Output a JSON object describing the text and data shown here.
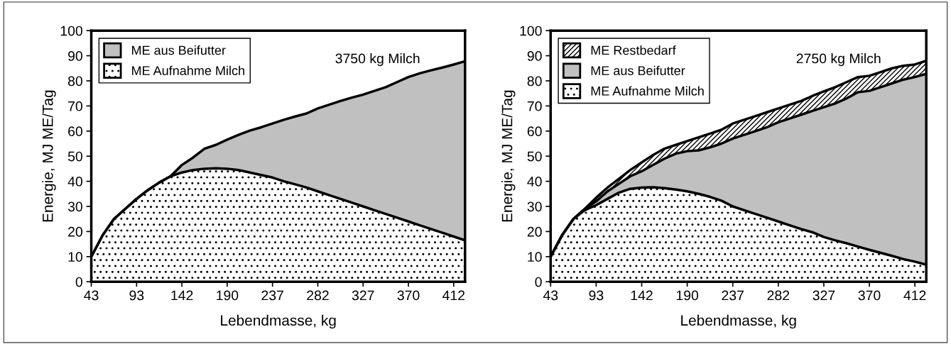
{
  "chart_data": [
    {
      "type": "area",
      "stacked": true,
      "xlabel": "Lebendmasse, kg",
      "ylabel": "Energie, MJ ME/Tag",
      "annotations": [
        "3750 kg Milch"
      ],
      "categories": [
        "43",
        null,
        null,
        null,
        "93",
        null,
        null,
        null,
        "142",
        null,
        null,
        null,
        "190",
        null,
        null,
        null,
        "237",
        null,
        null,
        null,
        "282",
        null,
        null,
        null,
        "327",
        null,
        null,
        null,
        "370",
        null,
        null,
        null,
        "412",
        null
      ],
      "ylim": [
        0,
        100
      ],
      "yticks": [
        0,
        10,
        20,
        30,
        40,
        50,
        60,
        70,
        80,
        90,
        100
      ],
      "grid": false,
      "legend": "top left",
      "series": [
        {
          "name": "ME Aufnahme Milch",
          "color": "#ffffff",
          "values": [
            10,
            18.5,
            25,
            29,
            33,
            36.5,
            39.5,
            42,
            43.5,
            44.5,
            45,
            45.2,
            45,
            44.5,
            43.5,
            42.5,
            41.5,
            40,
            38.8,
            37.5,
            36,
            34.5,
            33,
            31.5,
            30,
            28.5,
            27,
            25.5,
            24,
            22.5,
            21,
            19.5,
            18,
            16.5
          ]
        },
        {
          "name": "ME aus Beifutter",
          "color": "#c0c0c0",
          "values": [
            0,
            0,
            0,
            0,
            0,
            0,
            0,
            0,
            3,
            5,
            8,
            9.3,
            11.6,
            14,
            16.7,
            19,
            21.5,
            24.5,
            27,
            29.5,
            33,
            36,
            39,
            41.8,
            44.5,
            47.5,
            50.5,
            54,
            57.5,
            60.5,
            63.2,
            65.8,
            68.5,
            71.3
          ]
        }
      ]
    },
    {
      "type": "area",
      "stacked": true,
      "xlabel": "Lebendmasse, kg",
      "ylabel": "Energie, MJ ME/Tag",
      "annotations": [
        "2750 kg Milch"
      ],
      "categories": [
        "43",
        null,
        null,
        null,
        "93",
        null,
        null,
        null,
        "142",
        null,
        null,
        null,
        "190",
        null,
        null,
        null,
        "237",
        null,
        null,
        null,
        "282",
        null,
        null,
        null,
        "327",
        null,
        null,
        null,
        "370",
        null,
        null,
        null,
        "412",
        null
      ],
      "ylim": [
        0,
        100
      ],
      "yticks": [
        0,
        10,
        20,
        30,
        40,
        50,
        60,
        70,
        80,
        90,
        100
      ],
      "grid": false,
      "legend": "top left",
      "series": [
        {
          "name": "ME Aufnahme Milch",
          "color": "#ffffff",
          "values": [
            10,
            18.5,
            25,
            28.5,
            30.5,
            33,
            35.5,
            37,
            37.5,
            37.6,
            37.3,
            36.7,
            36,
            35,
            33.8,
            32.3,
            30,
            28.5,
            27,
            25.5,
            24,
            22.5,
            21,
            19.7,
            17.8,
            16.5,
            15.3,
            14,
            12.7,
            11.5,
            10.3,
            9,
            8,
            6.8
          ]
        },
        {
          "name": "ME aus Beifutter",
          "color": "#c0c0c0",
          "values": [
            0,
            0,
            0,
            0.5,
            1.5,
            3,
            3.5,
            5,
            6.5,
            8.9,
            11.7,
            14.3,
            16,
            17.3,
            19.7,
            22.7,
            27,
            30,
            33,
            36,
            39.5,
            42.5,
            45.5,
            48.3,
            51.7,
            54.5,
            57.7,
            61.5,
            63.3,
            66,
            68.7,
            71.5,
            73.5,
            76
          ]
        },
        {
          "name": "ME Restbedarf",
          "color": "#ffffff",
          "values": [
            0,
            0,
            0,
            0,
            1.5,
            1.5,
            2,
            2.5,
            3.5,
            4,
            4,
            3.5,
            4,
            5.2,
            5.5,
            5.5,
            6,
            6,
            6,
            6,
            5.5,
            5.5,
            5.5,
            6,
            6.3,
            6.5,
            6.5,
            6,
            6,
            6,
            6,
            5.5,
            5,
            5.2
          ]
        }
      ]
    }
  ]
}
